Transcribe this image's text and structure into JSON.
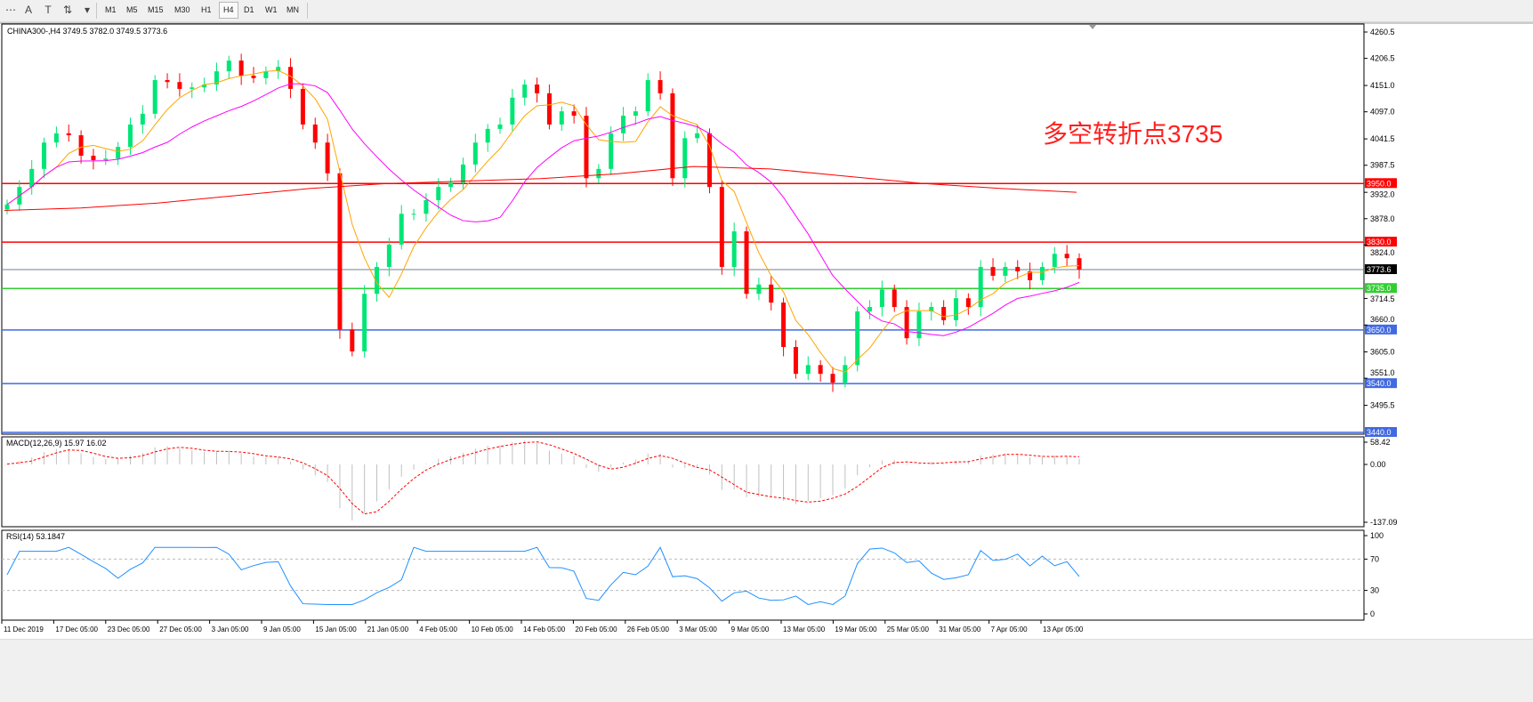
{
  "toolbar": {
    "tools": [
      {
        "name": "fibo-fan-icon",
        "glyph": "⋯"
      },
      {
        "name": "text-icon",
        "glyph": "A"
      },
      {
        "name": "text-label-icon",
        "glyph": "T"
      },
      {
        "name": "arrows-icon",
        "glyph": "⇅"
      },
      {
        "name": "chevron-down-icon",
        "glyph": "▾"
      }
    ],
    "timeframes": [
      "M1",
      "M5",
      "M15",
      "M30",
      "H1",
      "H4",
      "D1",
      "W1",
      "MN"
    ],
    "selected_timeframe": "H4"
  },
  "chart_data": {
    "type": "candlestick",
    "symbol_header": "CHINA300-,H4  3749.5 3782.0 3749.5 3773.6",
    "ylim": [
      3440.0,
      4260.5
    ],
    "price_ticks": [
      "4260.5",
      "4206.5",
      "4151.0",
      "4097.0",
      "4041.5",
      "3987.5",
      "3932.0",
      "3878.0",
      "3824.0",
      "3714.5",
      "3660.0",
      "3605.0",
      "3551.0",
      "3495.5"
    ],
    "x_labels": [
      "11 Dec 2019",
      "17 Dec 05:00",
      "23 Dec 05:00",
      "27 Dec 05:00",
      "3 Jan 05:00",
      "9 Jan 05:00",
      "15 Jan 05:00",
      "21 Jan 05:00",
      "4 Feb 05:00",
      "10 Feb 05:00",
      "14 Feb 05:00",
      "20 Feb 05:00",
      "26 Feb 05:00",
      "3 Mar 05:00",
      "9 Mar 05:00",
      "13 Mar 05:00",
      "19 Mar 05:00",
      "25 Mar 05:00",
      "31 Mar 05:00",
      "7 Apr 05:00",
      "13 Apr 05:00"
    ],
    "closes": [
      3907,
      3943,
      3980,
      4034,
      4053,
      4049,
      4007,
      3998,
      4001,
      4025,
      4071,
      4093,
      4162,
      4158,
      4144,
      4147,
      4153,
      4180,
      4202,
      4171,
      4166,
      4180,
      4189,
      4144,
      4071,
      4034,
      3971,
      3651,
      3606,
      3724,
      3779,
      3825,
      3888,
      3888,
      3916,
      3943,
      3952,
      3989,
      4034,
      4062,
      4071,
      4126,
      4153,
      4135,
      4071,
      4098,
      4089,
      3961,
      3980,
      4053,
      4089,
      4098,
      4162,
      4135,
      3961,
      4043,
      4053,
      3943,
      3779,
      3852,
      3724,
      3743,
      3706,
      3615,
      3560,
      3578,
      3560,
      3542,
      3578,
      3688,
      3697,
      3733,
      3697,
      3633,
      3688,
      3697,
      3670,
      3715,
      3697,
      3779,
      3761,
      3779,
      3770,
      3752,
      3779,
      3806,
      3797,
      3774
    ],
    "slow_ma": [
      3895,
      3900,
      3910,
      3925,
      3940,
      3950,
      3955,
      3960,
      3970,
      3985,
      3980,
      3965,
      3950,
      3940,
      3932
    ],
    "hlines": [
      {
        "value": 3950.0,
        "label": "3950.0",
        "color": "#ff0000"
      },
      {
        "value": 3830.0,
        "label": "3830.0",
        "color": "#ff0000"
      },
      {
        "value": 3773.6,
        "label": "3773.6",
        "color": "#708090",
        "label_bg": "#000000"
      },
      {
        "value": 3735.0,
        "label": "3735.0",
        "color": "#32cd32"
      },
      {
        "value": 3650.0,
        "label": "3650.0",
        "color": "#4169e1"
      },
      {
        "value": 3540.0,
        "label": "3540.0",
        "color": "#4169e1"
      },
      {
        "value": 3440.0,
        "label": "3440.0",
        "color": "#4169e1"
      }
    ],
    "annotation": "多空转折点3735",
    "colors": {
      "bull": "#00e676",
      "bear": "#ff0000",
      "fast_ma": "#ffa500",
      "mid_ma": "#ff00ff",
      "slow_ma": "#ff0000",
      "macd_hist": "#c0c0c0",
      "macd_signal": "#ff0000",
      "rsi": "#1e90ff"
    },
    "macd": {
      "label": "MACD(12,26,9) 15.97 16.02",
      "ticks": [
        "58.42",
        "0.00",
        "-137.09"
      ],
      "range": [
        -137.09,
        58.42
      ]
    },
    "rsi": {
      "label": "RSI(14) 53.1847",
      "ticks": [
        "100",
        "70",
        "30",
        "0"
      ],
      "levels": [
        70,
        30
      ]
    }
  }
}
